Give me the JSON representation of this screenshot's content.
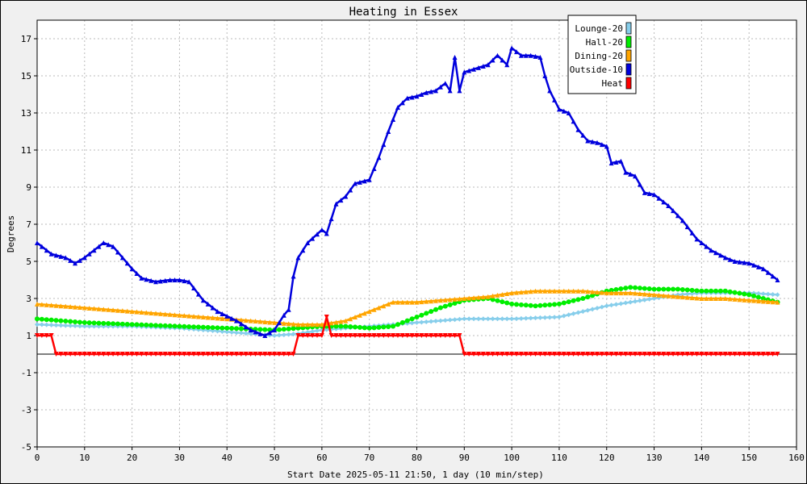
{
  "chart_data": {
    "type": "line",
    "title": "Heating in Essex",
    "xlabel": "Start Date 2025-05-11 21:50, 1 day (10 min/step)",
    "ylabel": "Degrees",
    "xlim": [
      0,
      160
    ],
    "ylim": [
      -5,
      18
    ],
    "x_ticks": [
      0,
      10,
      20,
      30,
      40,
      50,
      60,
      70,
      80,
      90,
      100,
      110,
      120,
      130,
      140,
      150,
      160
    ],
    "y_ticks": [
      -5,
      -3,
      -1,
      1,
      3,
      5,
      7,
      9,
      11,
      13,
      15,
      17
    ],
    "grid": true,
    "legend_position": "top-right",
    "zero_line": 0,
    "series": [
      {
        "name": "Lounge-20",
        "color": "#87ceeb",
        "marker": "diamond",
        "points": [
          [
            0,
            1.6
          ],
          [
            10,
            1.5
          ],
          [
            20,
            1.5
          ],
          [
            30,
            1.4
          ],
          [
            40,
            1.2
          ],
          [
            50,
            1.0
          ],
          [
            55,
            1.1
          ],
          [
            60,
            1.3
          ],
          [
            65,
            1.4
          ],
          [
            70,
            1.5
          ],
          [
            80,
            1.7
          ],
          [
            90,
            1.9
          ],
          [
            100,
            1.9
          ],
          [
            110,
            2.0
          ],
          [
            115,
            2.3
          ],
          [
            120,
            2.6
          ],
          [
            125,
            2.8
          ],
          [
            130,
            3.0
          ],
          [
            135,
            3.2
          ],
          [
            140,
            3.3
          ],
          [
            145,
            3.3
          ],
          [
            150,
            3.3
          ],
          [
            156,
            3.2
          ]
        ]
      },
      {
        "name": "Hall-20",
        "color": "#00ee00",
        "marker": "circle",
        "points": [
          [
            0,
            1.9
          ],
          [
            10,
            1.7
          ],
          [
            20,
            1.6
          ],
          [
            30,
            1.5
          ],
          [
            40,
            1.4
          ],
          [
            50,
            1.3
          ],
          [
            55,
            1.4
          ],
          [
            60,
            1.5
          ],
          [
            65,
            1.5
          ],
          [
            70,
            1.4
          ],
          [
            75,
            1.5
          ],
          [
            80,
            2.0
          ],
          [
            85,
            2.5
          ],
          [
            90,
            2.9
          ],
          [
            95,
            3.0
          ],
          [
            100,
            2.7
          ],
          [
            105,
            2.6
          ],
          [
            110,
            2.7
          ],
          [
            115,
            3.0
          ],
          [
            120,
            3.4
          ],
          [
            125,
            3.6
          ],
          [
            130,
            3.5
          ],
          [
            135,
            3.5
          ],
          [
            140,
            3.4
          ],
          [
            145,
            3.4
          ],
          [
            150,
            3.2
          ],
          [
            156,
            2.8
          ]
        ]
      },
      {
        "name": "Dining-20",
        "color": "#ffa500",
        "marker": "triangle-up",
        "points": [
          [
            0,
            2.7
          ],
          [
            10,
            2.5
          ],
          [
            20,
            2.3
          ],
          [
            30,
            2.1
          ],
          [
            40,
            1.9
          ],
          [
            50,
            1.7
          ],
          [
            55,
            1.6
          ],
          [
            60,
            1.6
          ],
          [
            65,
            1.8
          ],
          [
            70,
            2.3
          ],
          [
            75,
            2.8
          ],
          [
            80,
            2.8
          ],
          [
            85,
            2.9
          ],
          [
            90,
            3.0
          ],
          [
            95,
            3.1
          ],
          [
            100,
            3.3
          ],
          [
            105,
            3.4
          ],
          [
            110,
            3.4
          ],
          [
            115,
            3.4
          ],
          [
            120,
            3.3
          ],
          [
            125,
            3.3
          ],
          [
            130,
            3.2
          ],
          [
            135,
            3.1
          ],
          [
            140,
            3.0
          ],
          [
            145,
            3.0
          ],
          [
            150,
            2.9
          ],
          [
            156,
            2.8
          ]
        ]
      },
      {
        "name": "Outside-10",
        "color": "#0000dd",
        "marker": "triangle-up",
        "points": [
          [
            0,
            6.0
          ],
          [
            3,
            5.4
          ],
          [
            6,
            5.2
          ],
          [
            8,
            4.9
          ],
          [
            10,
            5.2
          ],
          [
            12,
            5.6
          ],
          [
            14,
            6.0
          ],
          [
            16,
            5.8
          ],
          [
            18,
            5.2
          ],
          [
            20,
            4.6
          ],
          [
            22,
            4.1
          ],
          [
            25,
            3.9
          ],
          [
            28,
            4.0
          ],
          [
            30,
            4.0
          ],
          [
            32,
            3.9
          ],
          [
            35,
            2.9
          ],
          [
            38,
            2.3
          ],
          [
            42,
            1.8
          ],
          [
            45,
            1.3
          ],
          [
            48,
            1.0
          ],
          [
            50,
            1.3
          ],
          [
            52,
            2.1
          ],
          [
            53,
            2.4
          ],
          [
            54,
            4.2
          ],
          [
            55,
            5.2
          ],
          [
            57,
            6.0
          ],
          [
            60,
            6.7
          ],
          [
            61,
            6.5
          ],
          [
            63,
            8.1
          ],
          [
            65,
            8.5
          ],
          [
            67,
            9.2
          ],
          [
            70,
            9.4
          ],
          [
            72,
            10.6
          ],
          [
            74,
            12.0
          ],
          [
            76,
            13.3
          ],
          [
            78,
            13.8
          ],
          [
            80,
            13.9
          ],
          [
            82,
            14.1
          ],
          [
            84,
            14.2
          ],
          [
            86,
            14.6
          ],
          [
            87,
            14.2
          ],
          [
            88,
            16.0
          ],
          [
            89,
            14.2
          ],
          [
            90,
            15.2
          ],
          [
            95,
            15.6
          ],
          [
            97,
            16.1
          ],
          [
            99,
            15.6
          ],
          [
            100,
            16.5
          ],
          [
            102,
            16.1
          ],
          [
            104,
            16.1
          ],
          [
            106,
            16.0
          ],
          [
            107,
            15.0
          ],
          [
            108,
            14.2
          ],
          [
            110,
            13.2
          ],
          [
            112,
            13.0
          ],
          [
            114,
            12.1
          ],
          [
            116,
            11.5
          ],
          [
            118,
            11.4
          ],
          [
            120,
            11.2
          ],
          [
            121,
            10.3
          ],
          [
            123,
            10.4
          ],
          [
            124,
            9.8
          ],
          [
            126,
            9.6
          ],
          [
            128,
            8.7
          ],
          [
            130,
            8.6
          ],
          [
            133,
            8.0
          ],
          [
            136,
            7.2
          ],
          [
            139,
            6.2
          ],
          [
            142,
            5.6
          ],
          [
            145,
            5.2
          ],
          [
            147,
            5.0
          ],
          [
            150,
            4.9
          ],
          [
            153,
            4.6
          ],
          [
            156,
            4.0
          ]
        ]
      },
      {
        "name": "Heat",
        "color": "#ff0000",
        "marker": "triangle-down",
        "points": [
          [
            0,
            1.0
          ],
          [
            3,
            1.0
          ],
          [
            4,
            0.0
          ],
          [
            54,
            0.0
          ],
          [
            55,
            1.0
          ],
          [
            60,
            1.0
          ],
          [
            61,
            2.0
          ],
          [
            62,
            1.0
          ],
          [
            89,
            1.0
          ],
          [
            90,
            0.0
          ],
          [
            156,
            0.0
          ]
        ]
      }
    ]
  }
}
